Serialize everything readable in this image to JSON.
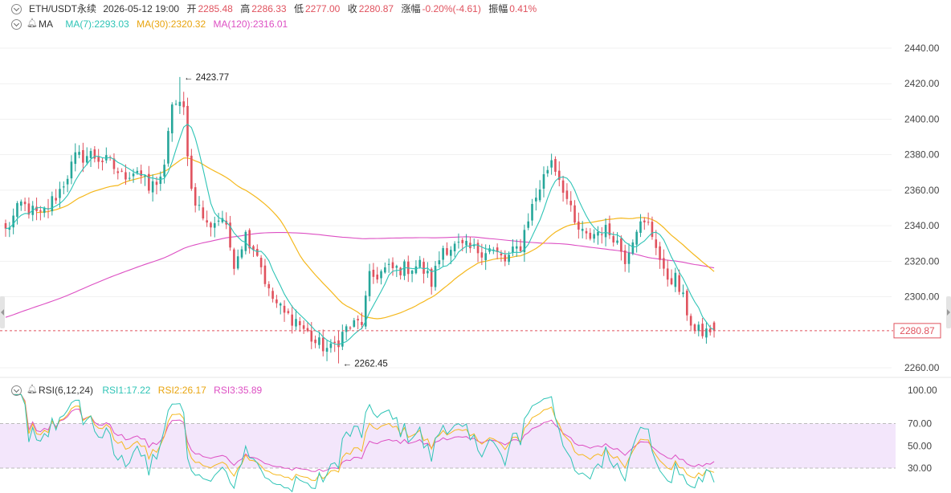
{
  "header": {
    "symbol": "ETH/USDT永续",
    "datetime": "2026-05-12 19:00",
    "open_label": "开",
    "open_value": "2285.48",
    "high_label": "高",
    "high_value": "2286.33",
    "low_label": "低",
    "low_value": "2277.00",
    "close_label": "收",
    "close_value": "2280.87",
    "change_label": "涨幅",
    "change_value": "-0.20%(-4.61)",
    "amplitude_label": "振幅",
    "amplitude_value": "0.41%"
  },
  "ma_legend": {
    "name": "MA",
    "ma7": "MA(7):2293.03",
    "ma30": "MA(30):2320.32",
    "ma120": "MA(120):2316.01"
  },
  "rsi_legend": {
    "name": "RSI(6,12,24)",
    "rsi1": "RSI1:17.22",
    "rsi2": "RSI2:26.17",
    "rsi3": "RSI3:35.89"
  },
  "annotations": {
    "high_marker": "2423.77",
    "low_marker": "2262.45",
    "last_price": "2280.87"
  },
  "colors": {
    "up": "#26a69a",
    "down": "#e0525e",
    "ma7": "#2ec4b6",
    "ma30": "#f5b81d",
    "ma120": "#dd4fc3",
    "rsi1": "#2ec4b6",
    "rsi2": "#f5b81d",
    "rsi3": "#dd4fc3",
    "last_price_line": "#e0525e",
    "rsi_band": "#f3e6fb",
    "text_red": "#e0525e",
    "text_dark": "#333333"
  },
  "chart_data": [
    {
      "type": "candlestick",
      "name": "price",
      "ylim": [
        2250,
        2440
      ],
      "yticks": [
        "2440.00",
        "2420.00",
        "2400.00",
        "2380.00",
        "2360.00",
        "2340.00",
        "2320.00",
        "2300.00",
        "2260.00"
      ],
      "last_price": 2280.87,
      "high_point": 2423.77,
      "low_point": 2262.45,
      "anchors": [
        [
          0,
          2337
        ],
        [
          4,
          2352
        ],
        [
          9,
          2345
        ],
        [
          14,
          2360
        ],
        [
          18,
          2378
        ],
        [
          22,
          2380
        ],
        [
          27,
          2375
        ],
        [
          30,
          2368
        ],
        [
          34,
          2372
        ],
        [
          37,
          2360
        ],
        [
          41,
          2371
        ],
        [
          43,
          2410
        ],
        [
          46,
          2405
        ],
        [
          48,
          2360
        ],
        [
          52,
          2340
        ],
        [
          56,
          2345
        ],
        [
          59,
          2320
        ],
        [
          62,
          2335
        ],
        [
          65,
          2325
        ],
        [
          68,
          2302
        ],
        [
          72,
          2290
        ],
        [
          75,
          2287
        ],
        [
          80,
          2274
        ],
        [
          84,
          2270
        ],
        [
          88,
          2282
        ],
        [
          92,
          2286
        ],
        [
          94,
          2310
        ],
        [
          98,
          2315
        ],
        [
          103,
          2316
        ],
        [
          107,
          2318
        ],
        [
          110,
          2308
        ],
        [
          113,
          2328
        ],
        [
          117,
          2328
        ],
        [
          121,
          2326
        ],
        [
          125,
          2327
        ],
        [
          129,
          2320
        ],
        [
          133,
          2329
        ],
        [
          135,
          2345
        ],
        [
          138,
          2362
        ],
        [
          141,
          2378
        ],
        [
          144,
          2362
        ],
        [
          147,
          2340
        ],
        [
          150,
          2333
        ],
        [
          154,
          2338
        ],
        [
          157,
          2335
        ],
        [
          160,
          2322
        ],
        [
          163,
          2340
        ],
        [
          166,
          2340
        ],
        [
          168,
          2330
        ],
        [
          170,
          2312
        ],
        [
          173,
          2310
        ],
        [
          175,
          2298
        ],
        [
          178,
          2280
        ]
      ]
    },
    {
      "type": "line",
      "name": "MA",
      "series": [
        {
          "name": "MA(7)",
          "last": 2293.03
        },
        {
          "name": "MA(30)",
          "last": 2320.32
        },
        {
          "name": "MA(120)",
          "last": 2316.01
        }
      ]
    },
    {
      "type": "line",
      "name": "RSI(6,12,24)",
      "ylim": [
        0,
        100
      ],
      "yticks": [
        "100.00",
        "70.00",
        "50.00",
        "30.00"
      ],
      "band": [
        30,
        70
      ],
      "series": [
        {
          "name": "RSI1",
          "last": 17.22
        },
        {
          "name": "RSI2",
          "last": 26.17
        },
        {
          "name": "RSI3",
          "last": 35.89
        }
      ]
    }
  ]
}
